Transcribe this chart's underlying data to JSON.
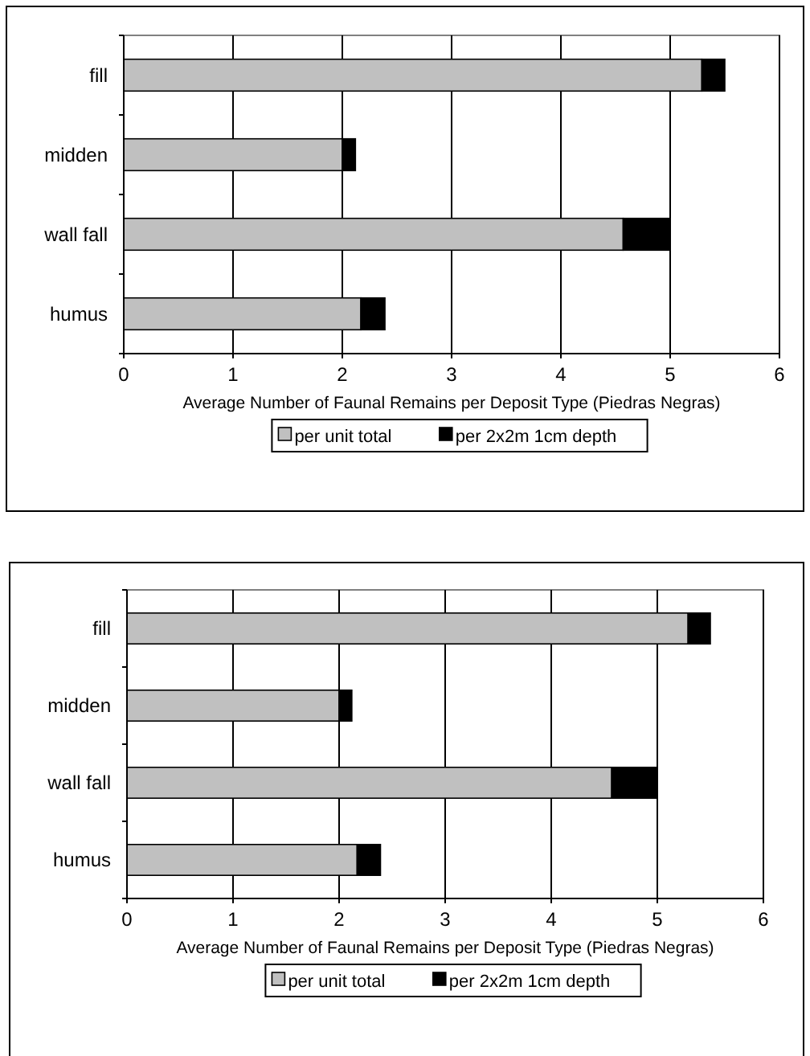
{
  "chart_data": [
    {
      "type": "bar",
      "orientation": "horizontal",
      "stacked": true,
      "xlabel": "Average Number of Faunal Remains per Deposit Type (Piedras Negras)",
      "categories": [
        "fill",
        "midden",
        "wall fall",
        "humus"
      ],
      "series": [
        {
          "name": "per unit total",
          "color": "#c0c0c0",
          "values": [
            5.29,
            2.0,
            4.57,
            2.17
          ]
        },
        {
          "name": "per 2x2m 1cm depth",
          "color": "#000000",
          "values": [
            0.21,
            0.12,
            0.43,
            0.22
          ]
        }
      ],
      "xlim": [
        0,
        6
      ],
      "xticks": [
        0,
        1,
        2,
        3,
        4,
        5,
        6
      ],
      "grid": "x",
      "legend": "bottom"
    },
    {
      "type": "bar",
      "orientation": "horizontal",
      "stacked": true,
      "xlabel": "Average Number of Faunal Remains per Deposit Type (Piedras Negras)",
      "categories": [
        "fill",
        "midden",
        "wall fall",
        "humus"
      ],
      "series": [
        {
          "name": "per unit total",
          "color": "#c0c0c0",
          "values": [
            5.29,
            2.0,
            4.57,
            2.17
          ]
        },
        {
          "name": "per 2x2m 1cm depth",
          "color": "#000000",
          "values": [
            0.21,
            0.12,
            0.43,
            0.22
          ]
        }
      ],
      "xlim": [
        0,
        6
      ],
      "xticks": [
        0,
        1,
        2,
        3,
        4,
        5,
        6
      ],
      "grid": "x",
      "legend": "bottom"
    }
  ]
}
